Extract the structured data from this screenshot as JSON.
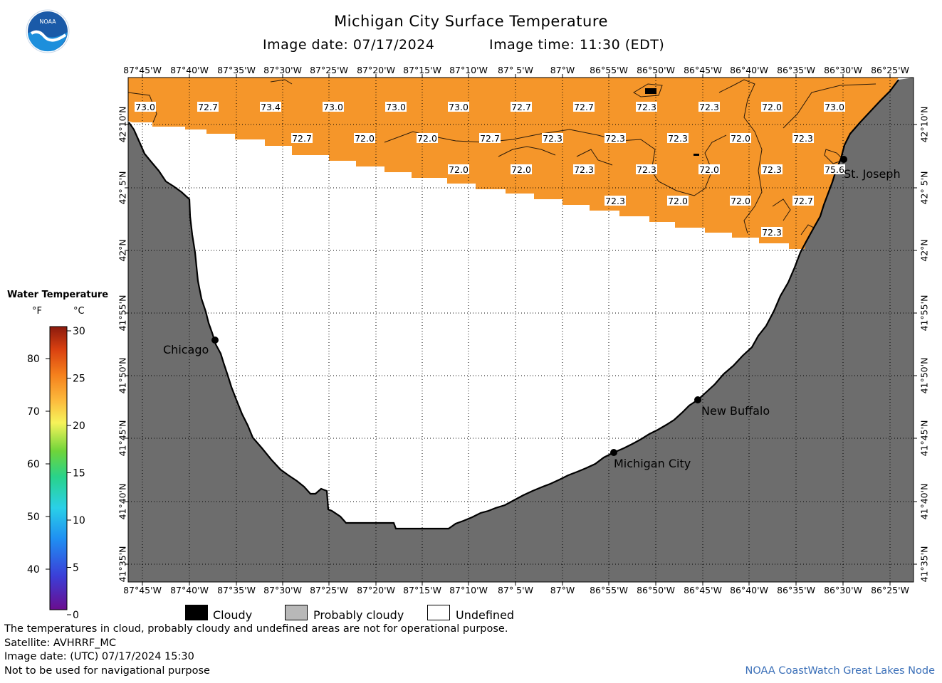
{
  "header": {
    "title": "Michigan City Surface Temperature",
    "image_date": "Image date: 07/17/2024",
    "image_time": "Image time: 11:30 (EDT)"
  },
  "logo": {
    "icon": "noaa-logo-icon",
    "text": "NOAA"
  },
  "map": {
    "lon_labels": [
      "87°45'W",
      "87°40'W",
      "87°35'W",
      "87°30'W",
      "87°25'W",
      "87°20'W",
      "87°15'W",
      "87°10'W",
      "87° 5'W",
      "87°W",
      "86°55'W",
      "86°50'W",
      "86°45'W",
      "86°40'W",
      "86°35'W",
      "86°30'W",
      "86°25'W"
    ],
    "lat_labels": [
      "42°10'N",
      "42° 5'N",
      "42°N",
      "41°55'N",
      "41°50'N",
      "41°45'N",
      "41°40'N",
      "41°35'N"
    ],
    "places": [
      {
        "name": "Chicago"
      },
      {
        "name": "St. Joseph"
      },
      {
        "name": "New Buffalo"
      },
      {
        "name": "Michigan City"
      }
    ],
    "temperatures": [
      [
        "73.0",
        "72.7",
        "73.4",
        "73.0",
        "73.0",
        "73.0",
        "72.7",
        "72.7",
        "72.3",
        "72.3",
        "72.0",
        "73.0"
      ],
      [
        "72.7",
        "72.0",
        "72.0",
        "72.7",
        "72.3",
        "72.3",
        "72.3",
        "72.0",
        "72.3"
      ],
      [
        "72.0",
        "72.0",
        "72.3",
        "72.3",
        "72.0",
        "72.3",
        "75.6"
      ],
      [
        "72.3",
        "72.0",
        "72.0",
        "72.7"
      ],
      [
        "72.3"
      ]
    ],
    "colors": {
      "water_temp": "#f5962a",
      "land": "#6d6d6d",
      "undefined": "#ffffff",
      "cloud": "#000000"
    }
  },
  "legend": {
    "title": "Water Temperature",
    "unit_f": "°F",
    "unit_c": "°C",
    "f_ticks": [
      "80",
      "70",
      "60",
      "50",
      "40"
    ],
    "c_ticks": [
      "30",
      "25",
      "20",
      "15",
      "10",
      "5",
      "0"
    ]
  },
  "key": {
    "cloudy": "Cloudy",
    "probably_cloudy": "Probably cloudy",
    "undefined": "Undefined"
  },
  "footer": {
    "note": "The temperatures in cloud, probably cloudy and undefined areas are not for operational purpose.",
    "satellite": "Satellite: AVHRRF_MC",
    "utc_date": "Image date: (UTC) 07/17/2024  15:30",
    "nav_warning": "Not to be used for navigational purpose",
    "source": "NOAA CoastWatch Great Lakes Node"
  }
}
